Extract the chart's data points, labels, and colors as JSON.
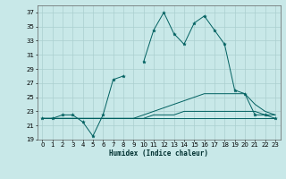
{
  "title": "",
  "xlabel": "Humidex (Indice chaleur)",
  "background_color": "#c8e8e8",
  "grid_color": "#aacfcf",
  "line_color": "#006060",
  "xlim": [
    -0.5,
    23.5
  ],
  "ylim": [
    19,
    38
  ],
  "yticks": [
    19,
    21,
    23,
    25,
    27,
    29,
    31,
    33,
    35,
    37
  ],
  "xticks": [
    0,
    1,
    2,
    3,
    4,
    5,
    6,
    7,
    8,
    9,
    10,
    11,
    12,
    13,
    14,
    15,
    16,
    17,
    18,
    19,
    20,
    21,
    22,
    23
  ],
  "series": [
    {
      "x": [
        0,
        1,
        2,
        3,
        4,
        5,
        6,
        7,
        8,
        9,
        10,
        11,
        12,
        13,
        14,
        15,
        16,
        17,
        18,
        19,
        20,
        21,
        22,
        23
      ],
      "y": [
        22.0,
        22.0,
        22.5,
        22.5,
        21.5,
        19.5,
        22.5,
        27.5,
        28.0,
        null,
        30.0,
        34.5,
        37.0,
        34.0,
        32.5,
        35.5,
        36.5,
        34.5,
        32.5,
        26.0,
        25.5,
        22.5,
        22.5,
        22.0
      ],
      "has_markers": true
    },
    {
      "x": [
        0,
        1,
        2,
        3,
        4,
        5,
        6,
        7,
        8,
        9,
        10,
        11,
        12,
        13,
        14,
        15,
        16,
        17,
        18,
        19,
        20,
        21,
        22,
        23
      ],
      "y": [
        22.0,
        22.0,
        22.0,
        22.0,
        22.0,
        22.0,
        22.0,
        22.0,
        22.0,
        22.0,
        22.5,
        23.0,
        23.5,
        24.0,
        24.5,
        25.0,
        25.5,
        25.5,
        25.5,
        25.5,
        25.5,
        24.0,
        23.0,
        22.5
      ],
      "has_markers": false
    },
    {
      "x": [
        0,
        1,
        2,
        3,
        4,
        5,
        6,
        7,
        8,
        9,
        10,
        11,
        12,
        13,
        14,
        15,
        16,
        17,
        18,
        19,
        20,
        21,
        22,
        23
      ],
      "y": [
        22.0,
        22.0,
        22.0,
        22.0,
        22.0,
        22.0,
        22.0,
        22.0,
        22.0,
        22.0,
        22.0,
        22.5,
        22.5,
        22.5,
        23.0,
        23.0,
        23.0,
        23.0,
        23.0,
        23.0,
        23.0,
        23.0,
        22.5,
        22.5
      ],
      "has_markers": false
    },
    {
      "x": [
        0,
        1,
        2,
        3,
        4,
        5,
        6,
        7,
        8,
        9,
        10,
        11,
        12,
        13,
        14,
        15,
        16,
        17,
        18,
        19,
        20,
        21,
        22,
        23
      ],
      "y": [
        22.0,
        22.0,
        22.0,
        22.0,
        22.0,
        22.0,
        22.0,
        22.0,
        22.0,
        22.0,
        22.0,
        22.0,
        22.0,
        22.0,
        22.0,
        22.0,
        22.0,
        22.0,
        22.0,
        22.0,
        22.0,
        22.0,
        22.0,
        22.0
      ],
      "has_markers": false
    }
  ]
}
